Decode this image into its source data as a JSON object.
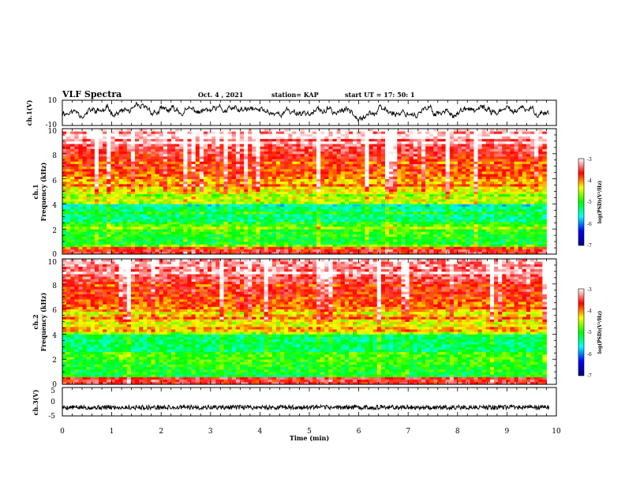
{
  "header": {
    "title": "VLF Spectra",
    "date": "Oct. 4 , 2021",
    "station": "station= KAP",
    "start": "start UT = 17: 50: 1"
  },
  "chart_data": [
    {
      "type": "line",
      "ylabel": "ch.1(V)",
      "ylim": [
        -10,
        10
      ],
      "yticks": [
        "10",
        "-10"
      ],
      "xlim": [
        0,
        10
      ],
      "seed": 11,
      "amplitude": 3.5,
      "offset": 1
    },
    {
      "type": "heatmap",
      "ylabel": "ch.1",
      "ylabel2": "Frequency (kHz)",
      "ylim": [
        0,
        10
      ],
      "yticks": [
        "0",
        "2",
        "4",
        "6",
        "8",
        "10"
      ],
      "xlim": [
        0,
        9.8
      ],
      "color_scale": {
        "label": "log(PSD)(V²/Hz)",
        "min": -7,
        "max": -3,
        "ticks": [
          "-3",
          "-4",
          "-5",
          "-6",
          "-7"
        ],
        "colors": [
          "#000080",
          "#0000ff",
          "#00ffff",
          "#00ff00",
          "#ffff00",
          "#ff0000",
          "#ffffff"
        ]
      },
      "seed": 23
    },
    {
      "type": "heatmap",
      "ylabel": "ch.2",
      "ylabel2": "Frequency (kHz)",
      "ylim": [
        0,
        10
      ],
      "yticks": [
        "0",
        "2",
        "4",
        "6",
        "8",
        "10"
      ],
      "xlim": [
        0,
        9.8
      ],
      "color_scale": {
        "label": "log(PSD)(V²/Hz)",
        "min": -7,
        "max": -3,
        "ticks": [
          "-3",
          "-4",
          "-5",
          "-6",
          "-7"
        ],
        "colors": [
          "#000080",
          "#0000ff",
          "#00ffff",
          "#00ff00",
          "#ffff00",
          "#ff0000",
          "#ffffff"
        ]
      },
      "seed": 57
    },
    {
      "type": "line",
      "ylabel": "ch.3(V)",
      "ylim": [
        -5,
        5
      ],
      "yticks": [
        "5",
        "0",
        "-5"
      ],
      "xlim": [
        0,
        10
      ],
      "level": -2,
      "thickness": 1.6,
      "seed": 5
    }
  ],
  "xaxis": {
    "label": "Time (min)",
    "ticks": [
      "0",
      "1",
      "2",
      "3",
      "4",
      "5",
      "6",
      "7",
      "8",
      "9",
      "10"
    ],
    "range": [
      0,
      10
    ]
  }
}
